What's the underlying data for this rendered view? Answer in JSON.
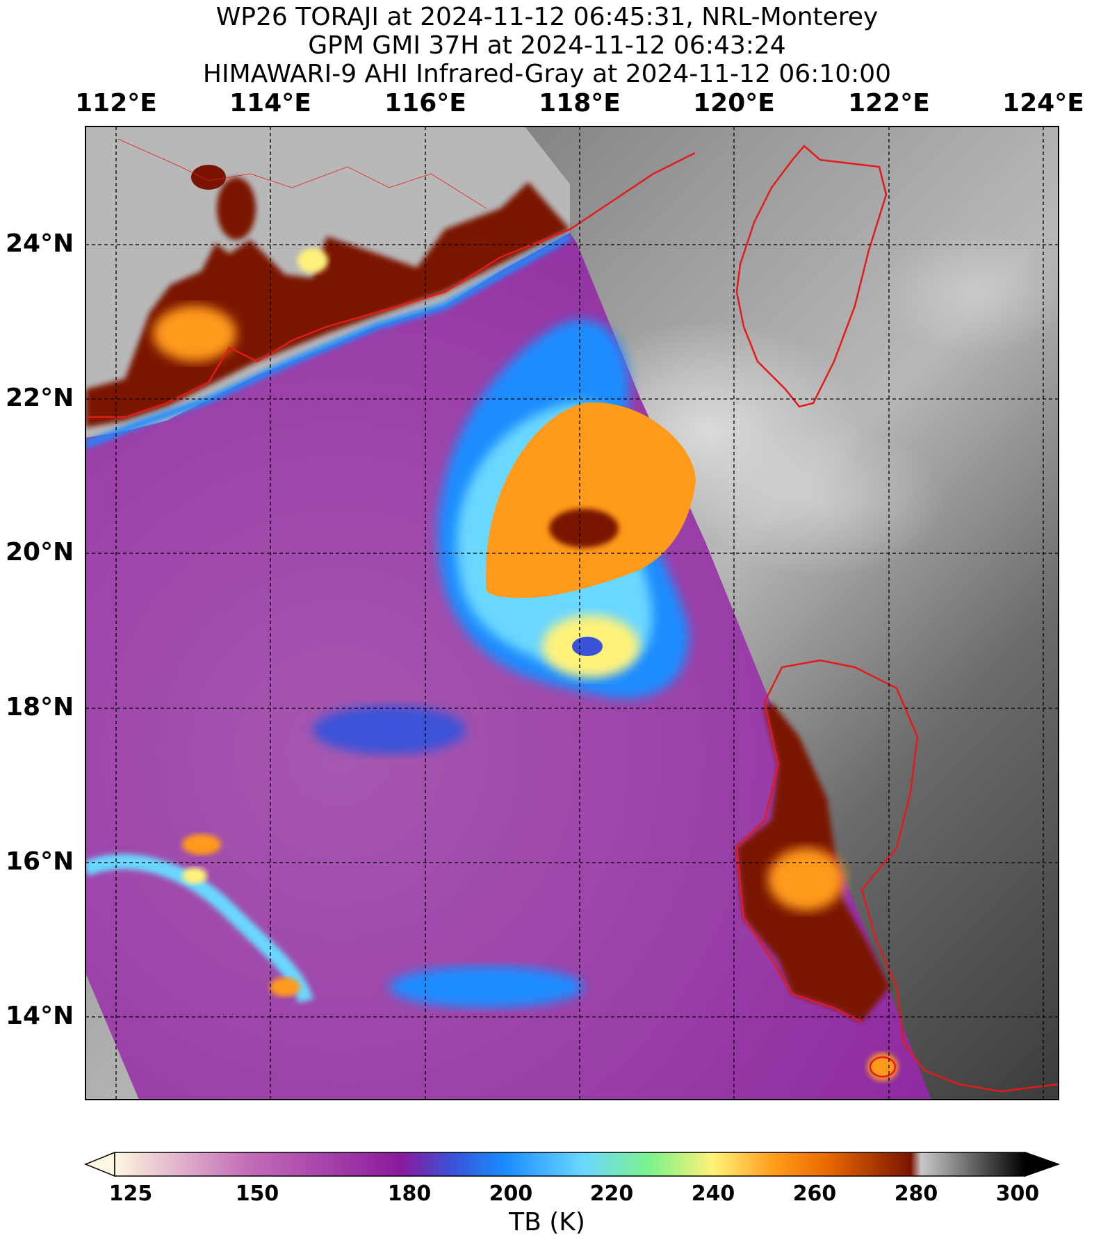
{
  "title": {
    "line1": "WP26 TORAJI at 2024-11-12 06:45:31, NRL-Monterey",
    "line2": "GPM GMI 37H at 2024-11-12 06:43:24",
    "line3": "HIMAWARI-9 AHI Infrared-Gray at 2024-11-12 06:10:00"
  },
  "axes": {
    "longitudes": [
      "112°E",
      "114°E",
      "116°E",
      "118°E",
      "120°E",
      "122°E",
      "124°E"
    ],
    "latitudes": [
      "24°N",
      "22°N",
      "20°N",
      "18°N",
      "16°N",
      "14°N"
    ],
    "lon_range": [
      111.6,
      124.2
    ],
    "lat_range": [
      12.9,
      25.5
    ],
    "grid": true
  },
  "colorbar": {
    "ticks": [
      "125",
      "150",
      "180",
      "200",
      "220",
      "240",
      "260",
      "280",
      "300"
    ],
    "label": "TB (K)",
    "range": [
      125,
      300
    ],
    "stops": [
      {
        "value": 125,
        "color": "#fdf6e0"
      },
      {
        "value": 150,
        "color": "#c46fb8"
      },
      {
        "value": 180,
        "color": "#8a1a9c"
      },
      {
        "value": 190,
        "color": "#3a52d8"
      },
      {
        "value": 200,
        "color": "#1a8cff"
      },
      {
        "value": 215,
        "color": "#6ad7ff"
      },
      {
        "value": 228,
        "color": "#7ef28a"
      },
      {
        "value": 240,
        "color": "#fff27a"
      },
      {
        "value": 252,
        "color": "#ff9a1a"
      },
      {
        "value": 262,
        "color": "#e86a00"
      },
      {
        "value": 278,
        "color": "#7a1400"
      },
      {
        "value": 280,
        "color": "#c8c8c8"
      },
      {
        "value": 300,
        "color": "#000000"
      }
    ]
  },
  "colors": {
    "coastline": "#e41a1a",
    "gridline": "#000000"
  }
}
